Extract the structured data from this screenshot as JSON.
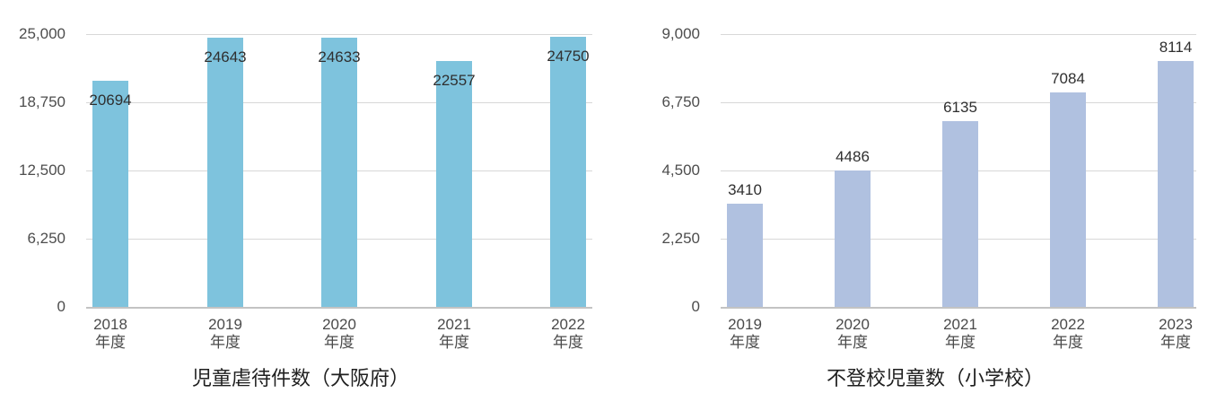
{
  "page": {
    "background": "#ffffff"
  },
  "chart_data": [
    {
      "type": "bar",
      "title": "児童虐待件数（大阪府）",
      "categories": [
        "2018",
        "2019",
        "2020",
        "2021",
        "2022"
      ],
      "category_suffix": "年度",
      "values": [
        20694,
        24643,
        24633,
        22557,
        24750
      ],
      "value_labels": [
        "20694",
        "24643",
        "24633",
        "22557",
        "24750"
      ],
      "ylim": [
        0,
        25000
      ],
      "ytick_labels": [
        "0",
        "6,250",
        "12,500",
        "18,750",
        "25,000"
      ],
      "bar_color": "#7EC3DD",
      "grid": true,
      "legend": "none",
      "value_label_position": "inside-top"
    },
    {
      "type": "bar",
      "title": "不登校児童数（小学校）",
      "categories": [
        "2019",
        "2020",
        "2021",
        "2022",
        "2023"
      ],
      "category_suffix": "年度",
      "values": [
        3410,
        4486,
        6135,
        7084,
        8114
      ],
      "value_labels": [
        "3410",
        "4486",
        "6135",
        "7084",
        "8114"
      ],
      "ylim": [
        0,
        9000
      ],
      "ytick_labels": [
        "0",
        "2,250",
        "4,500",
        "6,750",
        "9,000"
      ],
      "bar_color": "#B0C1E0",
      "grid": true,
      "legend": "none",
      "value_label_position": "above"
    }
  ],
  "colors": {
    "gridline": "#D8D8D8",
    "axis_line": "#C3C3C3",
    "tick_text": "#4D4D4D",
    "value_text": "#2F2F2F",
    "title_text": "#1F1F1F"
  }
}
